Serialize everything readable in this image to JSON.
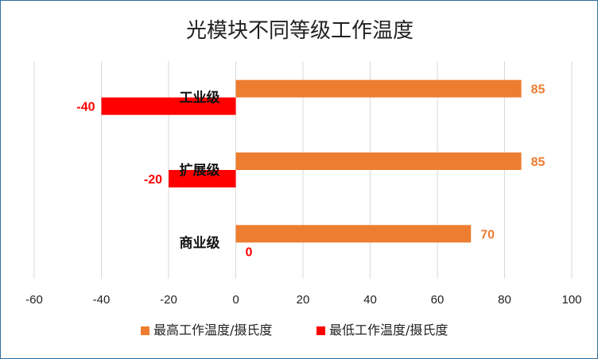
{
  "chart_data": {
    "type": "bar",
    "orientation": "horizontal",
    "title": "光模块不同等级工作温度",
    "categories": [
      "工业级",
      "扩展级",
      "商业级"
    ],
    "series": [
      {
        "name": "最高工作温度/摄氏度",
        "values": [
          85,
          85,
          70
        ],
        "color": "#ed7d31"
      },
      {
        "name": "最低工作温度/摄氏度",
        "values": [
          -40,
          -20,
          0
        ],
        "color": "#ff0000"
      }
    ],
    "xlim": [
      -60,
      100
    ],
    "xticks": [
      -60,
      -40,
      -20,
      0,
      20,
      40,
      60,
      80,
      100
    ],
    "grid": "vertical",
    "legend_position": "bottom",
    "data_labels": true
  }
}
